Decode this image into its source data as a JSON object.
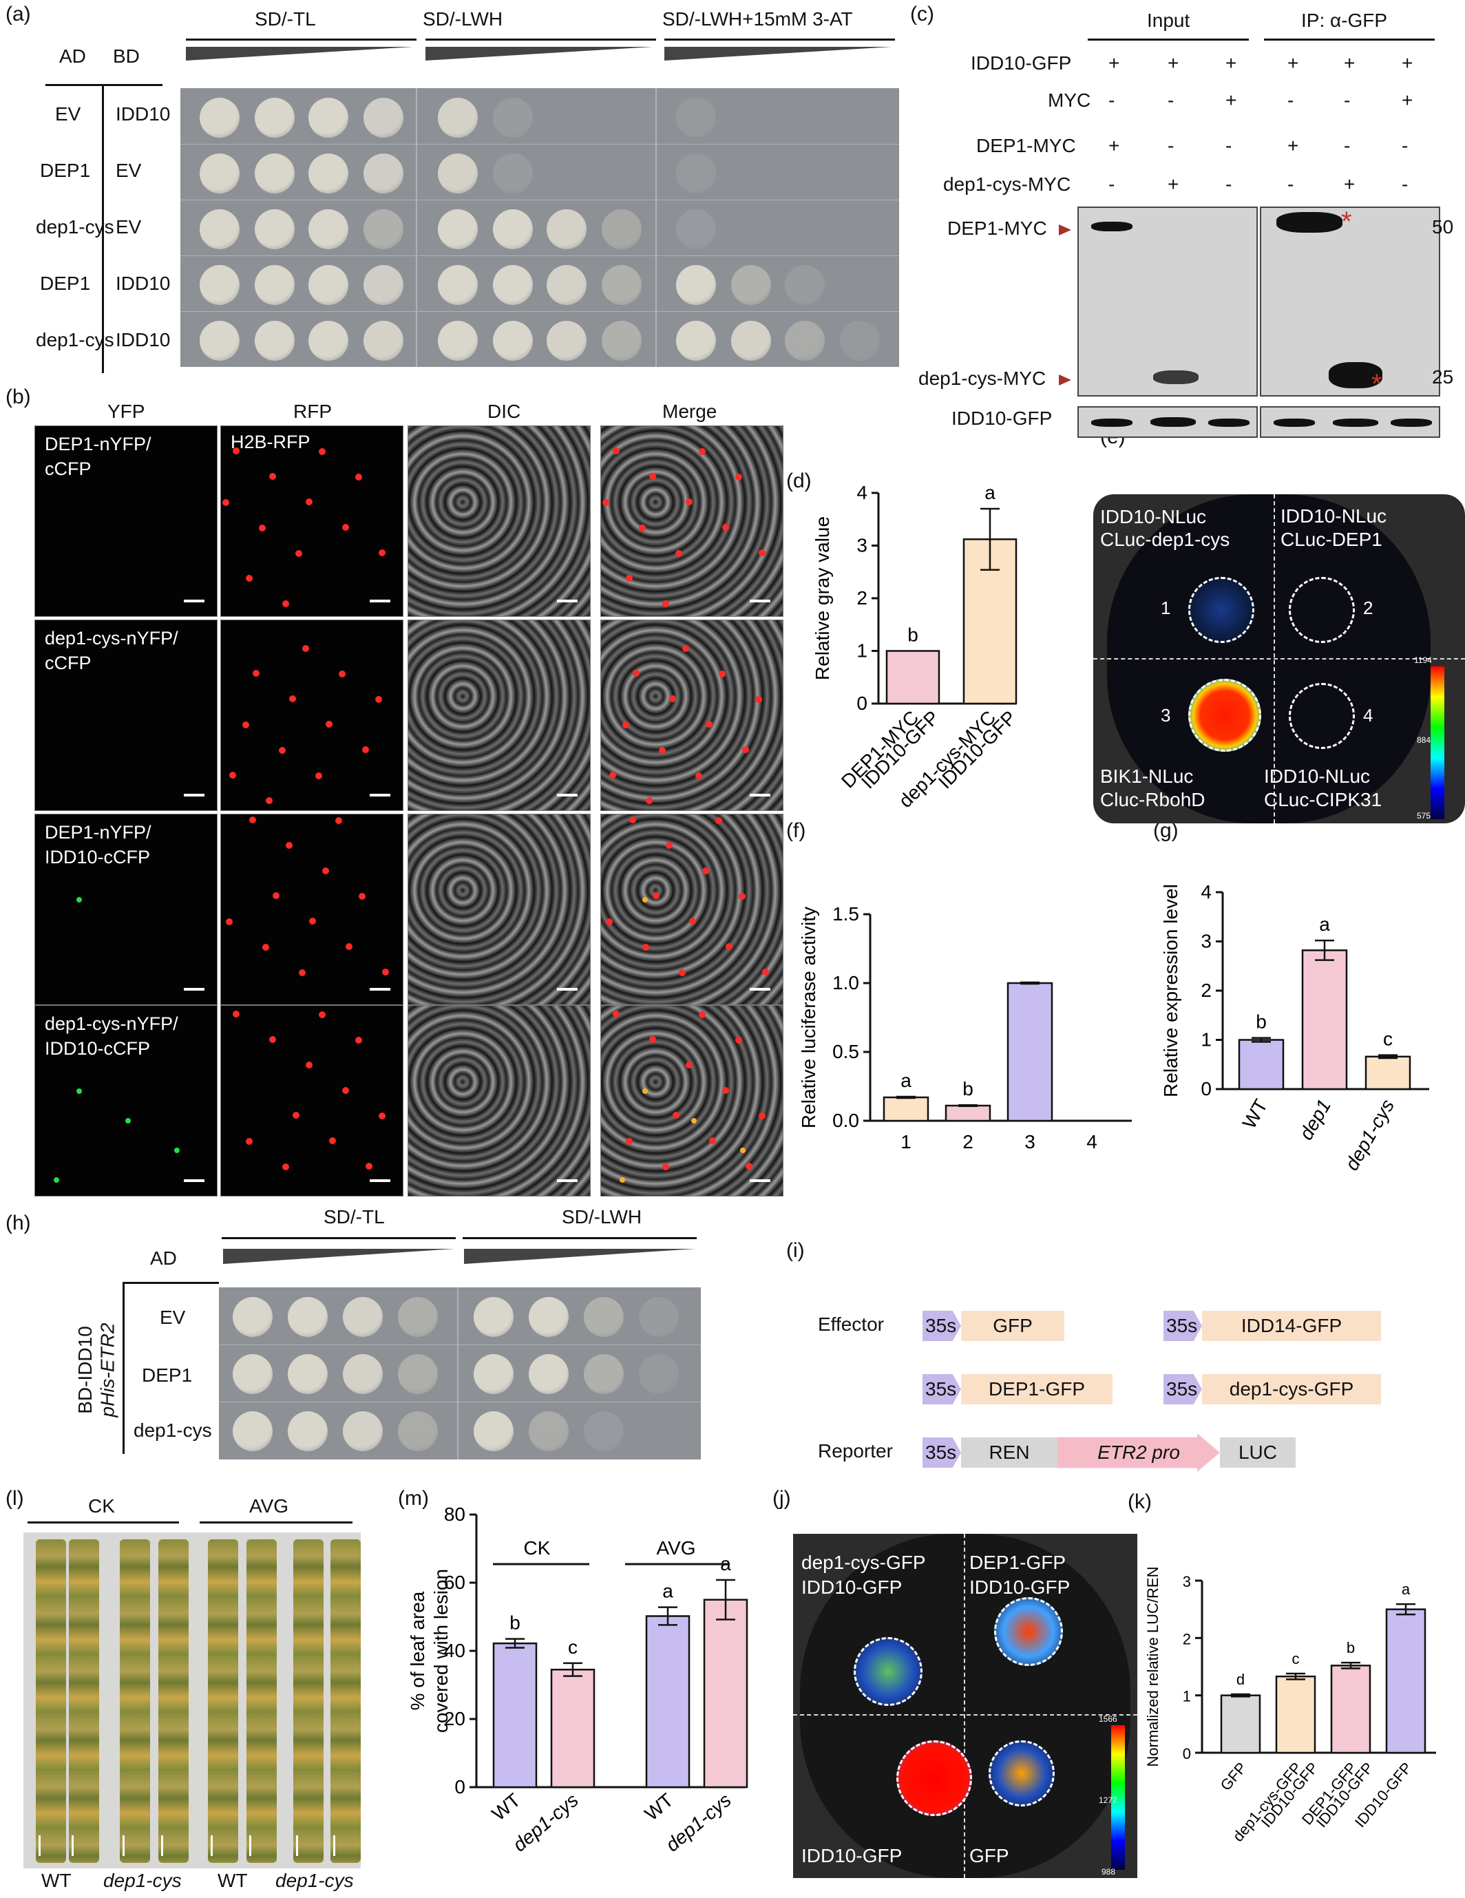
{
  "panel_labels": {
    "a": "(a)",
    "b": "(b)",
    "c": "(c)",
    "d": "(d)",
    "e": "(e)",
    "f": "(f)",
    "g": "(g)",
    "h": "(h)",
    "i": "(i)",
    "j": "(j)",
    "k": "(k)",
    "l": "(l)",
    "m": "(m)"
  },
  "panel_a": {
    "col_ad": "AD",
    "col_bd": "BD",
    "media": [
      "SD/-TL",
      "SD/-LWH",
      "SD/-LWH+15mM 3-AT"
    ],
    "rows": [
      {
        "ad": "EV",
        "bd": "IDD10"
      },
      {
        "ad": "DEP1",
        "bd": "EV"
      },
      {
        "ad": "dep1-cys",
        "bd": "EV"
      },
      {
        "ad": "DEP1",
        "bd": "IDD10"
      },
      {
        "ad": "dep1-cys",
        "bd": "IDD10"
      }
    ]
  },
  "panel_b": {
    "columns": [
      "YFP",
      "RFP",
      "DIC",
      "Merge"
    ],
    "rfp_label": "H2B-RFP",
    "rows": [
      {
        "line1": "DEP1-nYFP/",
        "line2": "cCFP"
      },
      {
        "line1": "dep1-cys-nYFP/",
        "line2": "cCFP"
      },
      {
        "line1": "DEP1-nYFP/",
        "line2": "IDD10-cCFP"
      },
      {
        "line1": "dep1-cys-nYFP/",
        "line2": "IDD10-cCFP"
      }
    ]
  },
  "panel_c": {
    "group_input": "Input",
    "group_ip": "IP: α-GFP",
    "row_labels": [
      "IDD10-GFP",
      "MYC",
      "DEP1-MYC",
      "dep1-cys-MYC"
    ],
    "signs": [
      [
        "+",
        "+",
        "+",
        "+",
        "+",
        "+"
      ],
      [
        "-",
        "-",
        "+",
        "-",
        "-",
        "+"
      ],
      [
        "+",
        "-",
        "-",
        "+",
        "-",
        "-"
      ],
      [
        "-",
        "+",
        "-",
        "-",
        "+",
        "-"
      ]
    ],
    "band_label_top": "DEP1-MYC",
    "band_label_bottom": "dep1-cys-MYC",
    "bottom_blot_label": "IDD10-GFP",
    "mw_top": "50",
    "mw_bottom": "25",
    "asterisk": "*"
  },
  "panel_e": {
    "q1": [
      "IDD10-NLuc",
      "CLuc-dep1-cys"
    ],
    "q2": [
      "IDD10-NLuc",
      "CLuc-DEP1"
    ],
    "q3": [
      "BIK1-NLuc",
      "Cluc-RbohD"
    ],
    "q4": [
      "IDD10-NLuc",
      "CLuc-CIPK31"
    ],
    "numbers": [
      "1",
      "2",
      "3",
      "4"
    ],
    "scale_max": "1194",
    "scale_mid": "884",
    "scale_min": "575"
  },
  "panel_h": {
    "ad_label": "AD",
    "side_label_1": "BD-IDD10",
    "side_label_2": "pHis-ETR2",
    "media": [
      "SD/-TL",
      "SD/-LWH"
    ],
    "rows": [
      "EV",
      "DEP1",
      "dep1-cys"
    ]
  },
  "panel_i": {
    "effector_label": "Effector",
    "reporter_label": "Reporter",
    "promoter": "35s",
    "effectors": [
      "GFP",
      "IDD14-GFP",
      "DEP1-GFP",
      "dep1-cys-GFP"
    ],
    "reporter_parts": [
      "REN",
      "ETR2 pro",
      "LUC"
    ]
  },
  "panel_j": {
    "q1": [
      "dep1-cys-GFP",
      "IDD10-GFP"
    ],
    "q2": [
      "DEP1-GFP",
      "IDD10-GFP"
    ],
    "q3": [
      "IDD10-GFP"
    ],
    "q4": [
      "GFP"
    ],
    "scale_max": "1566",
    "scale_mid": "1277",
    "scale_min": "988"
  },
  "panel_l": {
    "groups": [
      "CK",
      "AVG"
    ],
    "labels": [
      "WT",
      "dep1-cys",
      "WT",
      "dep1-cys"
    ]
  },
  "colors": {
    "pink": "#f4c9d4",
    "peach": "#fde3c6",
    "lavender": "#c7bdf0",
    "grey": "#d9d9d9",
    "promoter": "#c5b8ea",
    "effector_box": "#fbe0c8",
    "reporter_grey": "#d6d6d6",
    "etr2_box": "#f5bcc8"
  },
  "chart_data": [
    {
      "panel": "d",
      "type": "bar",
      "categories": [
        "DEP1-MYC\nIDD10-GFP",
        "dep1-cys-MYC\nIDD10-GFP"
      ],
      "values": [
        1.0,
        3.12
      ],
      "errors": [
        0,
        0.58
      ],
      "letters": [
        "b",
        "a"
      ],
      "ylabel": "Relative gray value",
      "ylim": [
        0,
        4
      ],
      "yticks": [
        0,
        1,
        2,
        3,
        4
      ],
      "colors": [
        "#f4c9d4",
        "#fde3c6"
      ]
    },
    {
      "panel": "f",
      "type": "bar",
      "categories": [
        "1",
        "2",
        "3",
        "4"
      ],
      "values": [
        0.17,
        0.11,
        1.0,
        0.0
      ],
      "errors": [
        0.005,
        0.004,
        0.005,
        0
      ],
      "letters": [
        "a",
        "b",
        "",
        ""
      ],
      "ylabel": "Relative luciferase activity",
      "ylim": [
        0,
        1.5
      ],
      "yticks": [
        0.0,
        0.5,
        1.0,
        1.5
      ],
      "colors": [
        "#fde3c6",
        "#f4c9d4",
        "#c7bdf0",
        "#ffffff"
      ]
    },
    {
      "panel": "g",
      "type": "bar",
      "categories": [
        "WT",
        "dep1",
        "dep1-cys"
      ],
      "values": [
        1.0,
        2.82,
        0.66
      ],
      "errors": [
        0.04,
        0.2,
        0.03
      ],
      "letters": [
        "b",
        "a",
        "c"
      ],
      "ylabel": "Relative expression level",
      "ylim": [
        0,
        4
      ],
      "yticks": [
        0,
        1,
        2,
        3,
        4
      ],
      "colors": [
        "#c7bdf0",
        "#f4c9d4",
        "#fde3c6"
      ]
    },
    {
      "panel": "m",
      "type": "bar",
      "categories": [
        "WT",
        "dep1-cys",
        "WT",
        "dep1-cys"
      ],
      "groups": [
        "CK",
        "AVG"
      ],
      "values": [
        42.2,
        34.5,
        50.2,
        55.0
      ],
      "errors": [
        1.3,
        1.9,
        2.6,
        5.8
      ],
      "letters": [
        "b",
        "c",
        "a",
        "a"
      ],
      "ylabel": "% of leaf area\ncovered with lesion",
      "ylim": [
        0,
        80
      ],
      "yticks": [
        0,
        20,
        40,
        60,
        80
      ],
      "colors": [
        "#c7bdf0",
        "#f4c9d4",
        "#c7bdf0",
        "#f4c9d4"
      ]
    },
    {
      "panel": "k",
      "type": "bar",
      "categories": [
        "GFP",
        "dep1-cys-GFP\nIDD10-GFP",
        "DEP1-GFP\nIDD10-GFP",
        "IDD10-GFP"
      ],
      "values": [
        1.0,
        1.33,
        1.52,
        2.5
      ],
      "errors": [
        0.02,
        0.05,
        0.05,
        0.09
      ],
      "letters": [
        "d",
        "c",
        "b",
        "a"
      ],
      "ylabel": "Normalized relative LUC/REN",
      "ylim": [
        0,
        3
      ],
      "yticks": [
        0,
        1,
        2,
        3
      ],
      "colors": [
        "#d9d9d9",
        "#fde3c6",
        "#f4c9d4",
        "#c7bdf0"
      ]
    }
  ]
}
